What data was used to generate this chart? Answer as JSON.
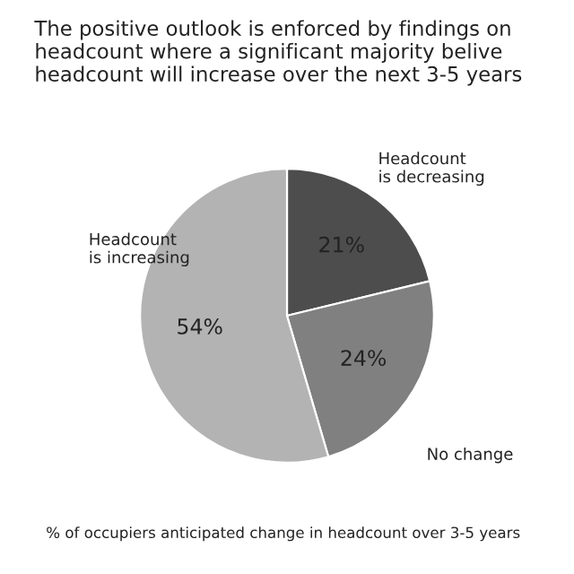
{
  "chart_data": {
    "type": "pie",
    "title": "The positive outlook is enforced by findings on headcount where a significant majority belive headcount will increase over the next 3-5 years",
    "categories": [
      "Headcount\nis decreasing",
      "No change",
      "Headcount\nis increasing"
    ],
    "values": [
      21,
      24,
      54
    ],
    "colors": [
      "#4d4d4d",
      "#808080",
      "#b3b3b3"
    ],
    "data_labels": true,
    "value_labels": [
      "21%",
      "24%",
      "54%"
    ],
    "annotations": [
      "% of occupiers anticipated change in headcount over 3-5 years"
    ]
  }
}
